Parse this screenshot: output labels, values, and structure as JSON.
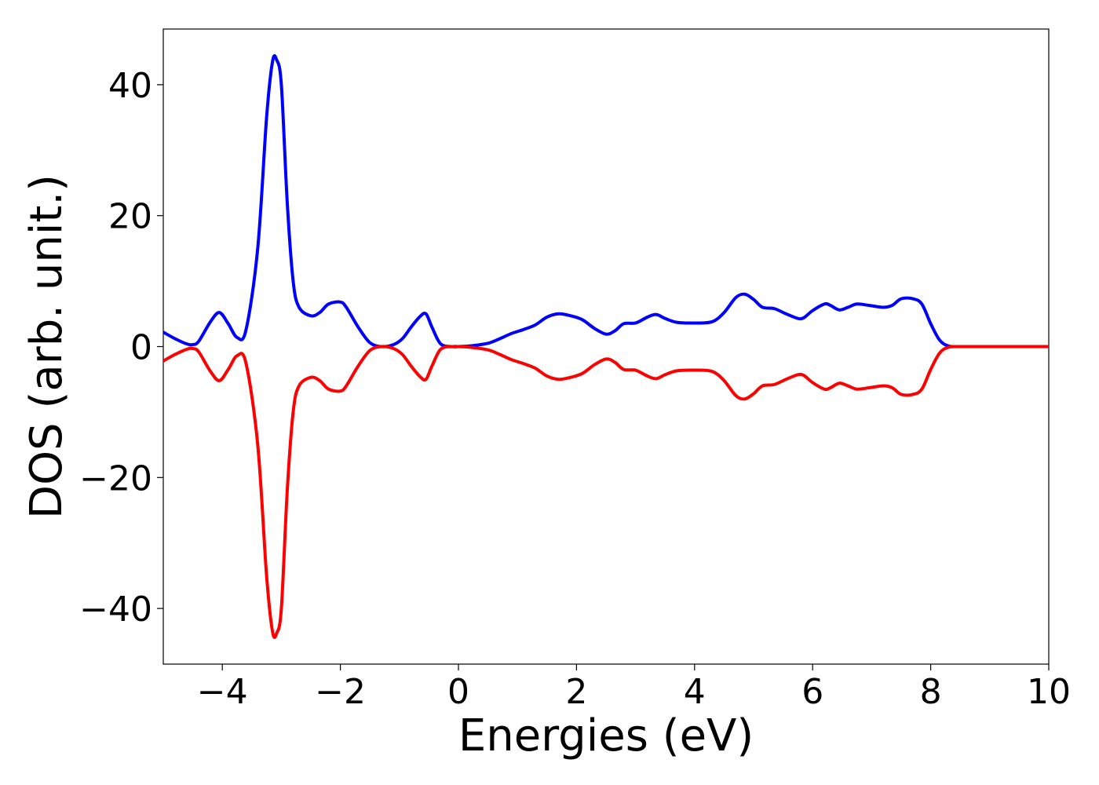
{
  "chart_data": {
    "type": "line",
    "title": "",
    "xlabel": "Energies (eV)",
    "ylabel": "DOS (arb. unit.)",
    "xlim": [
      -5,
      10
    ],
    "ylim": [
      -48.5,
      48.5
    ],
    "xticks": [
      -4,
      -2,
      0,
      2,
      4,
      6,
      8,
      10
    ],
    "xtick_labels": [
      "−4",
      "−2",
      "0",
      "2",
      "4",
      "6",
      "8",
      "10"
    ],
    "yticks": [
      -40,
      -20,
      0,
      20,
      40
    ],
    "ytick_labels": [
      "−40",
      "−20",
      "0",
      "20",
      "40"
    ],
    "grid": false,
    "legend": "none",
    "series": [
      {
        "color": "#0000ff",
        "x": [
          -5.0,
          -4.8,
          -4.6,
          -4.5,
          -4.4,
          -4.2,
          -4.05,
          -3.9,
          -3.75,
          -3.6,
          -3.4,
          -3.25,
          -3.15,
          -3.08,
          -3.0,
          -2.9,
          -2.8,
          -2.7,
          -2.5,
          -2.35,
          -2.2,
          -2.0,
          -1.9,
          -1.7,
          -1.5,
          -1.3,
          -1.1,
          -0.95,
          -0.8,
          -0.65,
          -0.55,
          -0.45,
          -0.3,
          -0.1,
          0.0,
          0.2,
          0.5,
          0.7,
          0.9,
          1.1,
          1.3,
          1.5,
          1.7,
          1.9,
          2.1,
          2.3,
          2.5,
          2.65,
          2.8,
          3.0,
          3.2,
          3.35,
          3.5,
          3.7,
          4.0,
          4.3,
          4.5,
          4.7,
          4.85,
          5.0,
          5.15,
          5.35,
          5.55,
          5.75,
          5.85,
          6.0,
          6.2,
          6.3,
          6.45,
          6.6,
          6.75,
          6.95,
          7.2,
          7.35,
          7.5,
          7.7,
          7.85,
          8.0,
          8.15,
          8.3,
          8.5,
          9.0,
          9.5,
          10.0
        ],
        "values": [
          2.2,
          1.2,
          0.4,
          0.3,
          0.8,
          3.8,
          5.2,
          3.5,
          1.4,
          2.5,
          15.0,
          35.0,
          43.5,
          43.8,
          40.0,
          22.0,
          10.0,
          6.0,
          4.7,
          5.2,
          6.5,
          6.8,
          6.0,
          3.0,
          0.6,
          0.0,
          0.3,
          1.2,
          3.0,
          4.6,
          5.0,
          3.0,
          0.4,
          0.0,
          0.0,
          0.1,
          0.5,
          1.2,
          2.0,
          2.6,
          3.3,
          4.5,
          5.0,
          4.7,
          4.1,
          2.8,
          1.9,
          2.4,
          3.5,
          3.6,
          4.5,
          4.9,
          4.3,
          3.7,
          3.6,
          3.8,
          5.2,
          7.5,
          8.0,
          7.2,
          6.0,
          5.8,
          5.0,
          4.3,
          4.4,
          5.5,
          6.5,
          6.3,
          5.6,
          6.0,
          6.5,
          6.3,
          6.0,
          6.3,
          7.3,
          7.3,
          6.5,
          3.5,
          1.0,
          0.1,
          0.0,
          0.0,
          0.0,
          0.0
        ]
      },
      {
        "color": "#ff0000",
        "x": [
          -5.0,
          -4.8,
          -4.6,
          -4.5,
          -4.4,
          -4.2,
          -4.05,
          -3.9,
          -3.75,
          -3.6,
          -3.4,
          -3.25,
          -3.15,
          -3.08,
          -3.0,
          -2.9,
          -2.8,
          -2.7,
          -2.5,
          -2.35,
          -2.2,
          -2.0,
          -1.9,
          -1.7,
          -1.5,
          -1.3,
          -1.1,
          -0.95,
          -0.8,
          -0.65,
          -0.55,
          -0.45,
          -0.3,
          -0.1,
          0.0,
          0.2,
          0.5,
          0.7,
          0.9,
          1.1,
          1.3,
          1.5,
          1.7,
          1.9,
          2.1,
          2.3,
          2.5,
          2.65,
          2.8,
          3.0,
          3.2,
          3.35,
          3.5,
          3.7,
          4.0,
          4.3,
          4.5,
          4.7,
          4.85,
          5.0,
          5.15,
          5.35,
          5.55,
          5.75,
          5.85,
          6.0,
          6.2,
          6.3,
          6.45,
          6.6,
          6.75,
          6.95,
          7.2,
          7.35,
          7.5,
          7.7,
          7.85,
          8.0,
          8.15,
          8.3,
          8.5,
          9.0,
          9.5,
          10.0
        ],
        "values": [
          -2.2,
          -1.2,
          -0.4,
          -0.3,
          -0.8,
          -3.8,
          -5.2,
          -3.5,
          -1.4,
          -2.5,
          -15.0,
          -35.0,
          -43.5,
          -43.8,
          -40.0,
          -22.0,
          -10.0,
          -6.0,
          -4.7,
          -5.2,
          -6.5,
          -6.8,
          -6.0,
          -3.0,
          -0.6,
          0.0,
          -0.3,
          -1.2,
          -3.0,
          -4.6,
          -5.0,
          -3.0,
          -0.4,
          0.0,
          0.0,
          -0.1,
          -0.5,
          -1.2,
          -2.0,
          -2.6,
          -3.3,
          -4.5,
          -5.0,
          -4.7,
          -4.1,
          -2.8,
          -1.9,
          -2.4,
          -3.5,
          -3.6,
          -4.5,
          -4.9,
          -4.3,
          -3.7,
          -3.6,
          -3.8,
          -5.2,
          -7.5,
          -8.0,
          -7.2,
          -6.0,
          -5.8,
          -5.0,
          -4.3,
          -4.4,
          -5.5,
          -6.5,
          -6.3,
          -5.6,
          -6.0,
          -6.5,
          -6.3,
          -6.0,
          -6.3,
          -7.3,
          -7.3,
          -6.5,
          -3.5,
          -1.0,
          -0.1,
          0.0,
          0.0,
          0.0,
          0.0
        ]
      }
    ]
  }
}
